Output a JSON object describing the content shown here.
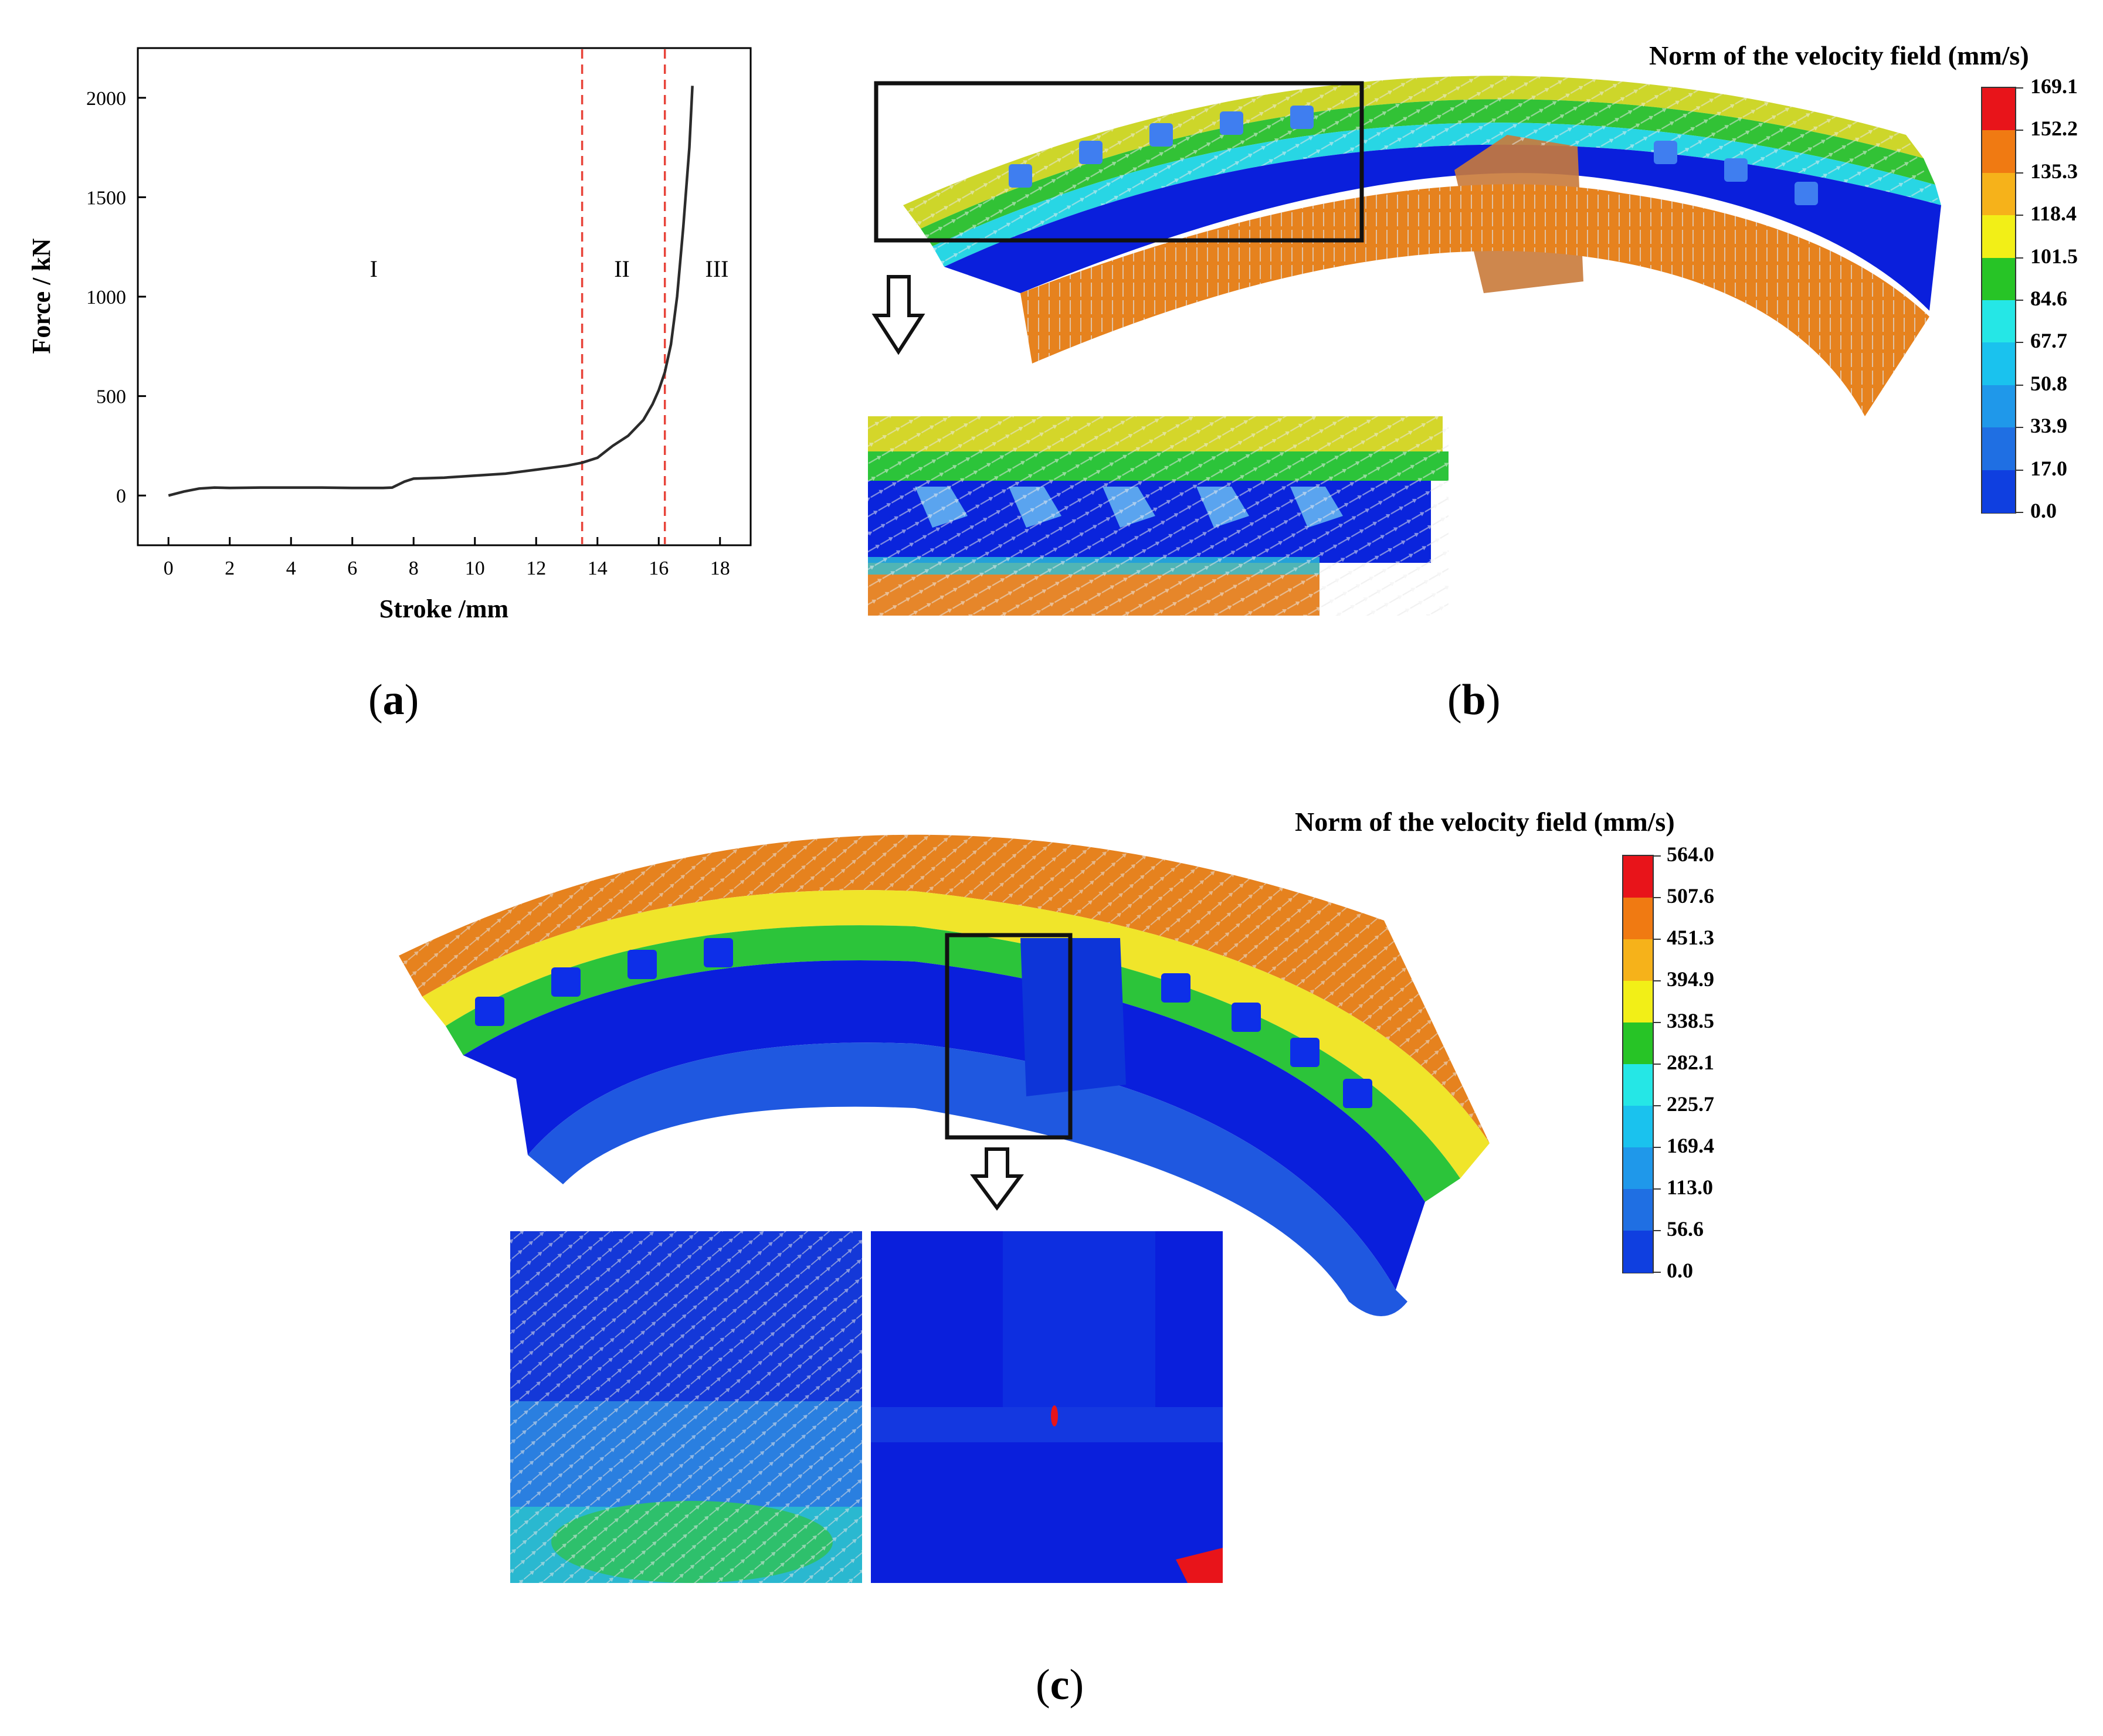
{
  "figure": {
    "captions": {
      "a": "a",
      "b": "b",
      "c": "c"
    }
  },
  "chart_data": {
    "type": "line",
    "xlabel": "Stroke /mm",
    "ylabel": "Force / kN",
    "xlim": [
      -1,
      19
    ],
    "ylim": [
      -250,
      2250
    ],
    "x_ticks": [
      0,
      2,
      4,
      6,
      8,
      10,
      12,
      14,
      16,
      18
    ],
    "y_ticks": [
      0,
      500,
      1000,
      1500,
      2000
    ],
    "grid": false,
    "series": [
      {
        "x": [
          0,
          0.5,
          1,
          1.5,
          2,
          3,
          4,
          5,
          6,
          7,
          7.3,
          7.7,
          8,
          9,
          10,
          11,
          12,
          12.5,
          13,
          13.5,
          14,
          14.5,
          15,
          15.5,
          15.8,
          16,
          16.2,
          16.4,
          16.6,
          16.8,
          17.0,
          17.1
        ],
        "y": [
          0,
          20,
          35,
          40,
          38,
          40,
          40,
          40,
          38,
          38,
          40,
          70,
          85,
          90,
          100,
          110,
          130,
          140,
          150,
          165,
          190,
          250,
          300,
          380,
          460,
          530,
          620,
          760,
          1000,
          1350,
          1750,
          2060
        ]
      }
    ],
    "reference_lines_x": [
      13.5,
      16.2
    ],
    "regions": [
      {
        "label": "I",
        "x": 6.7,
        "y": 1100
      },
      {
        "label": "II",
        "x": 14.8,
        "y": 1100
      },
      {
        "label": "III",
        "x": 17.9,
        "y": 1100
      }
    ]
  },
  "colorbar_b": {
    "title": "Norm of the velocity field (mm/s)",
    "values": [
      "169.1",
      "152.2",
      "135.3",
      "118.4",
      "101.5",
      "84.6",
      "67.7",
      "50.8",
      "33.9",
      "17.0",
      "0.0"
    ],
    "colors": [
      "#e8141a",
      "#f07a12",
      "#f6b21a",
      "#f2ef17",
      "#27c426",
      "#25e7e6",
      "#1ac2ee",
      "#1f98ea",
      "#1f6fe3",
      "#0f3fe0",
      "#0516d8"
    ]
  },
  "colorbar_c": {
    "title": "Norm of the velocity field (mm/s)",
    "values": [
      "564.0",
      "507.6",
      "451.3",
      "394.9",
      "338.5",
      "282.1",
      "225.7",
      "169.4",
      "113.0",
      "56.6",
      "0.0"
    ],
    "colors": [
      "#e8141a",
      "#f07a12",
      "#f6b21a",
      "#f2ef17",
      "#27c426",
      "#25e7e6",
      "#1ac2ee",
      "#1f98ea",
      "#1f6fe3",
      "#0f3fe0",
      "#0516d8"
    ]
  }
}
